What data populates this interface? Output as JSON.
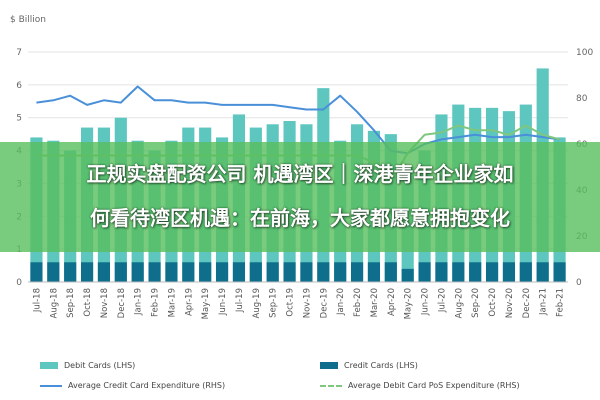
{
  "chart_data": {
    "type": "bar",
    "unit_label": "$ Billion",
    "categories": [
      "Jul-18",
      "Aug-18",
      "Sep-18",
      "Oct-18",
      "Nov-18",
      "Dec-18",
      "Jan-19",
      "Feb-19",
      "Mar-19",
      "Apr-19",
      "May-19",
      "Jun-19",
      "Jul-19",
      "Aug-19",
      "Sep-19",
      "Oct-19",
      "Nov-19",
      "Dec-19",
      "Jan-20",
      "Feb-20",
      "Mar-20",
      "Apr-20",
      "May-20",
      "Jun-20",
      "Jul-20",
      "Aug-20",
      "Sep-20",
      "Oct-20",
      "Nov-20",
      "Dec-20",
      "Jan-21",
      "Feb-21"
    ],
    "y_left": {
      "ticks": [
        0,
        1,
        2,
        3,
        4,
        5,
        6,
        7
      ],
      "range": [
        0,
        7
      ]
    },
    "y_right": {
      "ticks": [
        0,
        20,
        40,
        60,
        80,
        100
      ],
      "range": [
        0,
        100
      ]
    },
    "series": [
      {
        "name": "Debit Cards (LHS)",
        "kind": "bar",
        "color": "#5cc6bf",
        "values": [
          4.4,
          4.3,
          4.0,
          4.7,
          4.7,
          5.0,
          4.3,
          4.0,
          4.3,
          4.7,
          4.7,
          4.4,
          5.1,
          4.7,
          4.8,
          4.9,
          4.8,
          5.9,
          4.3,
          4.8,
          4.6,
          4.5,
          3.5,
          4.0,
          5.1,
          5.4,
          5.3,
          5.3,
          5.2,
          5.4,
          6.5,
          4.4
        ]
      },
      {
        "name": "Credit Cards (LHS)",
        "kind": "bar",
        "color": "#0f6e8c",
        "values": [
          0.6,
          0.6,
          0.6,
          0.6,
          0.6,
          0.6,
          0.6,
          0.6,
          0.6,
          0.6,
          0.6,
          0.6,
          0.6,
          0.6,
          0.6,
          0.6,
          0.6,
          0.6,
          0.6,
          0.6,
          0.6,
          0.6,
          0.4,
          0.6,
          0.6,
          0.6,
          0.6,
          0.6,
          0.6,
          0.6,
          0.6,
          0.6
        ]
      },
      {
        "name": "Average Credit Card Expenditure (RHS)",
        "kind": "line",
        "color": "#4a90d9",
        "values": [
          78,
          79,
          81,
          77,
          79,
          78,
          85,
          79,
          79,
          78,
          78,
          77,
          77,
          77,
          77,
          76,
          75,
          75,
          81,
          74,
          66,
          57,
          56,
          60,
          62,
          63,
          64,
          63,
          63,
          64,
          63,
          62
        ]
      },
      {
        "name": "Average Debit Card PoS Expenditure (RHS)",
        "kind": "line",
        "color": "#7fc77f",
        "values": [
          55,
          55,
          55,
          55,
          55,
          55,
          55,
          55,
          55,
          55,
          55,
          55,
          55,
          55,
          55,
          55,
          55,
          55,
          55,
          55,
          52,
          44,
          56,
          64,
          65,
          68,
          66,
          66,
          64,
          68,
          64,
          62
        ]
      }
    ]
  },
  "overlay": {
    "line1": "正规实盘配资公司 机遇湾区｜深港青年企业家如",
    "line2": "何看待湾区机遇：在前海，大家都愿意拥抱变化"
  }
}
